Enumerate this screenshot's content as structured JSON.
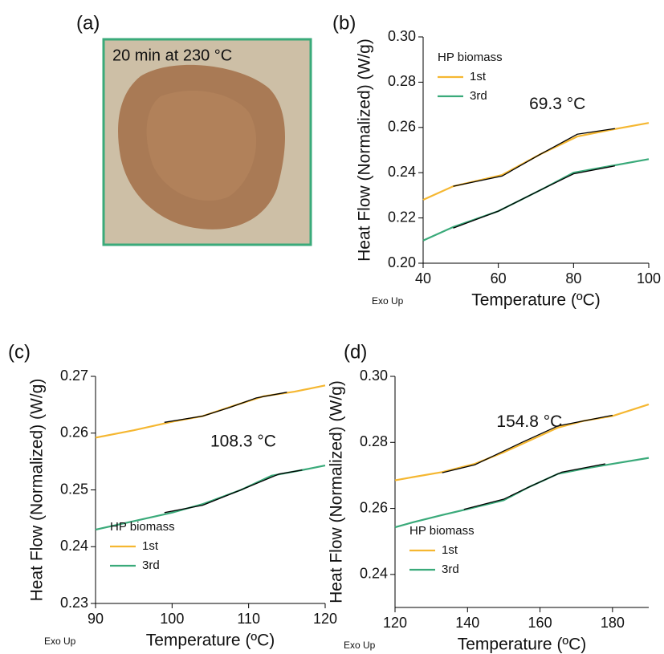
{
  "photo": {
    "label": "(a)",
    "caption": "20 min at 230 °C"
  },
  "chart_data": [
    {
      "type": "line",
      "label": "(b)",
      "xlabel": "Temperature (ºC)",
      "ylabel": "Heat Flow (Normalized) (W/g)",
      "note": "Exo Up",
      "annotation": "69.3 °C",
      "legend_title": "HP biomass",
      "legend": "upper left",
      "xlim": [
        40,
        100
      ],
      "xticks": [
        40,
        60,
        80,
        100
      ],
      "ylim": [
        0.2,
        0.3
      ],
      "yticks": [
        {
          "value": 0.2,
          "label": "0.20"
        },
        0.22,
        0.24,
        0.26,
        0.28,
        {
          "value": 0.3,
          "label": "0.30"
        }
      ],
      "series": [
        {
          "name": "1st",
          "color": "#f5b731",
          "x": [
            40,
            48,
            61,
            71,
            81,
            90,
            100
          ],
          "values": [
            0.228,
            0.234,
            0.239,
            0.248,
            0.256,
            0.259,
            0.262
          ]
        },
        {
          "name": "3rd",
          "color": "#3aaa7a",
          "x": [
            40,
            48,
            60,
            72,
            80,
            90,
            100
          ],
          "values": [
            0.21,
            0.216,
            0.223,
            0.233,
            0.24,
            0.243,
            0.246
          ]
        }
      ],
      "fits": [
        {
          "color": "#000000",
          "x": [
            48,
            61,
            71,
            81,
            91
          ],
          "values": [
            0.234,
            0.2385,
            0.248,
            0.257,
            0.2595
          ]
        },
        {
          "color": "#000000",
          "x": [
            48,
            60,
            72,
            80,
            91
          ],
          "values": [
            0.2155,
            0.223,
            0.233,
            0.2395,
            0.243
          ]
        }
      ]
    },
    {
      "type": "line",
      "label": "(c)",
      "xlabel": "Temperature (ºC)",
      "ylabel": "Heat Flow (Normalized) (W/g)",
      "note": "Exo Up",
      "annotation": "108.3 °C",
      "legend_title": "HP biomass",
      "legend": "lower left",
      "xlim": [
        90,
        120
      ],
      "xticks": [
        90,
        100,
        110,
        120
      ],
      "ylim": [
        0.23,
        0.27
      ],
      "yticks": [
        0.23,
        0.24,
        0.25,
        0.26,
        0.27
      ],
      "series": [
        {
          "name": "1st",
          "color": "#f5b731",
          "x": [
            90,
            95,
            100,
            104,
            108,
            112,
            116,
            120
          ],
          "values": [
            0.2592,
            0.2605,
            0.262,
            0.263,
            0.2648,
            0.2665,
            0.2673,
            0.2684
          ]
        },
        {
          "name": "3rd",
          "color": "#3aaa7a",
          "x": [
            90,
            95,
            100,
            104,
            109,
            113,
            117,
            120
          ],
          "values": [
            0.243,
            0.2445,
            0.246,
            0.2475,
            0.25,
            0.2525,
            0.2535,
            0.2543
          ]
        }
      ],
      "fits": [
        {
          "color": "#000000",
          "x": [
            99,
            104,
            107.5,
            111,
            115
          ],
          "values": [
            0.2619,
            0.263,
            0.2645,
            0.2662,
            0.2672
          ]
        },
        {
          "color": "#000000",
          "x": [
            99,
            104,
            109,
            114,
            117
          ],
          "values": [
            0.246,
            0.2473,
            0.25,
            0.2528,
            0.2535
          ]
        }
      ]
    },
    {
      "type": "line",
      "label": "(d)",
      "xlabel": "Temperature (ºC)",
      "ylabel": "Heat Flow (Normalized) (W/g)",
      "note": "Exo Up",
      "annotation": "154.8 °C",
      "legend_title": "HP biomass",
      "legend": "lower left",
      "xlim": [
        120,
        190
      ],
      "xticks": [
        120,
        140,
        160,
        180
      ],
      "ylim": [
        0.23,
        0.3
      ],
      "yticks": [
        0.24,
        0.26,
        0.28,
        {
          "value": 0.3,
          "label": "0.30"
        }
      ],
      "series": [
        {
          "name": "1st",
          "color": "#f5b731",
          "x": [
            120,
            125,
            133,
            142,
            150,
            157,
            165,
            172,
            180,
            190
          ],
          "values": [
            0.2685,
            0.2695,
            0.271,
            0.2735,
            0.277,
            0.2805,
            0.2845,
            0.2865,
            0.288,
            0.2915
          ]
        },
        {
          "name": "3rd",
          "color": "#3aaa7a",
          "x": [
            120,
            125,
            133,
            140,
            150,
            157,
            165,
            172,
            180,
            190
          ],
          "values": [
            0.2543,
            0.2558,
            0.258,
            0.2598,
            0.2625,
            0.2665,
            0.2705,
            0.272,
            0.2735,
            0.2753
          ]
        }
      ],
      "fits": [
        {
          "color": "#000000",
          "x": [
            133,
            142,
            155,
            165,
            180
          ],
          "values": [
            0.2708,
            0.2732,
            0.28,
            0.285,
            0.2882
          ]
        },
        {
          "color": "#000000",
          "x": [
            139,
            150,
            157,
            166,
            178
          ],
          "values": [
            0.2597,
            0.2628,
            0.2665,
            0.271,
            0.2735
          ]
        }
      ]
    }
  ]
}
